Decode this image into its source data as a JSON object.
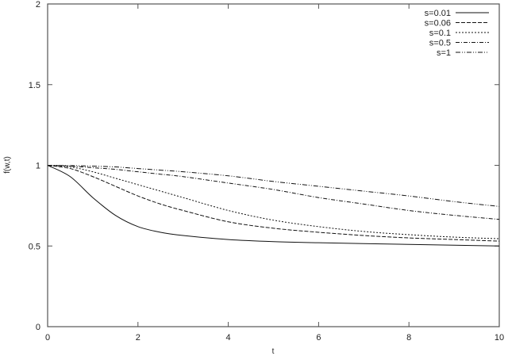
{
  "chart_data": {
    "type": "line",
    "title": "",
    "xlabel": "t",
    "ylabel": "f(w,t)",
    "xlim": [
      0,
      10
    ],
    "ylim": [
      0,
      2
    ],
    "xticks": [
      "0",
      "2",
      "4",
      "6",
      "8",
      "10"
    ],
    "yticks": [
      "0",
      "0.5",
      "1",
      "1.5",
      "2"
    ],
    "grid": false,
    "legend_position": "top-right",
    "x": [
      0,
      0.5,
      1,
      1.5,
      2,
      2.5,
      3,
      4,
      5,
      6,
      7,
      8,
      9,
      10
    ],
    "series": [
      {
        "name": "s=0.01",
        "style": "solid",
        "values": [
          1.0,
          0.93,
          0.8,
          0.69,
          0.62,
          0.585,
          0.565,
          0.54,
          0.527,
          0.52,
          0.515,
          0.51,
          0.505,
          0.5
        ]
      },
      {
        "name": "s=0.06",
        "style": "dashed",
        "values": [
          1.0,
          0.98,
          0.93,
          0.87,
          0.81,
          0.76,
          0.72,
          0.65,
          0.61,
          0.585,
          0.565,
          0.55,
          0.54,
          0.53
        ]
      },
      {
        "name": "s=0.1",
        "style": "dotted",
        "values": [
          1.0,
          0.99,
          0.96,
          0.92,
          0.88,
          0.84,
          0.8,
          0.72,
          0.66,
          0.62,
          0.59,
          0.57,
          0.555,
          0.545
        ]
      },
      {
        "name": "s=0.5",
        "style": "dash-dot",
        "values": [
          1.0,
          0.995,
          0.985,
          0.975,
          0.96,
          0.945,
          0.93,
          0.89,
          0.85,
          0.8,
          0.76,
          0.72,
          0.69,
          0.665
        ]
      },
      {
        "name": "s=1",
        "style": "dash-dot-dot",
        "values": [
          1.0,
          0.998,
          0.995,
          0.99,
          0.98,
          0.97,
          0.96,
          0.935,
          0.9,
          0.87,
          0.84,
          0.81,
          0.775,
          0.745
        ]
      }
    ]
  },
  "axes": {
    "xlabel": "t",
    "ylabel": "f(w,t)",
    "xticks": [
      "0",
      "2",
      "4",
      "6",
      "8",
      "10"
    ],
    "yticks": [
      "0",
      "0.5",
      "1",
      "1.5",
      "2"
    ]
  },
  "legend": [
    {
      "label": "s=0.01"
    },
    {
      "label": "s=0.06"
    },
    {
      "label": "s=0.1"
    },
    {
      "label": "s=0.5"
    },
    {
      "label": "s=1"
    }
  ]
}
